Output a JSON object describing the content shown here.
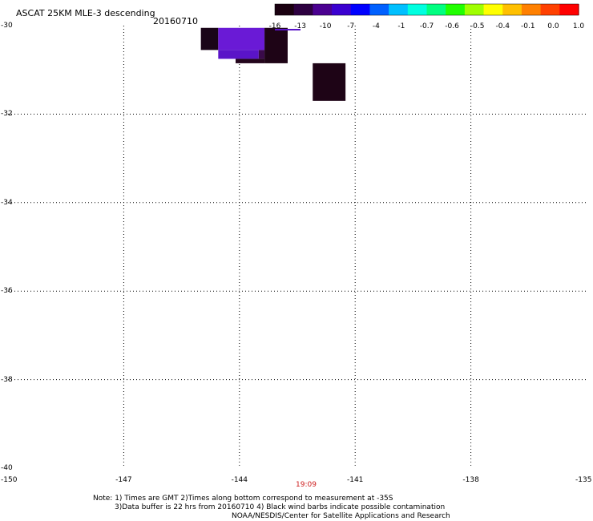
{
  "header": {
    "title": "ASCAT 25KM MLE-3 descending",
    "date": "20160710"
  },
  "colorbar": {
    "labels": [
      "-16",
      "-13",
      "-10",
      "-7",
      "-4",
      "-1",
      "-0.7",
      "-0.6",
      "-0.5",
      "-0.4",
      "-0.1",
      "0.0",
      "1.0"
    ],
    "colors": [
      "#1a0010",
      "#2d0040",
      "#4a0090",
      "#3a00d0",
      "#0000ff",
      "#0060ff",
      "#00c0ff",
      "#00ffe0",
      "#00ff80",
      "#20ff00",
      "#a0ff00",
      "#ffff00",
      "#ffc000",
      "#ff8000",
      "#ff4000",
      "#ff0000"
    ]
  },
  "chart_data": {
    "type": "heatmap",
    "title": "ASCAT 25KM MLE-3 descending",
    "xlim": [
      -150,
      -135
    ],
    "ylim": [
      -40,
      -30
    ],
    "x_ticks": [
      "-150",
      "-147",
      "-144",
      "-141",
      "-138",
      "-135"
    ],
    "y_ticks": [
      "-30",
      "-32",
      "-34",
      "-36",
      "-38",
      "-40"
    ],
    "grid": true,
    "cells": [
      {
        "lon0": -145.0,
        "lon1": -144.55,
        "lat0": -30.05,
        "lat1": -30.55,
        "color": "#1a0518"
      },
      {
        "lon0": -144.55,
        "lon1": -143.35,
        "lat0": -30.05,
        "lat1": -30.55,
        "color": "#6a1ad6"
      },
      {
        "lon0": -144.55,
        "lon1": -143.5,
        "lat0": -30.55,
        "lat1": -30.75,
        "color": "#5a14c8"
      },
      {
        "lon0": -143.5,
        "lon1": -143.35,
        "lat0": -30.55,
        "lat1": -30.75,
        "color": "#3a0a4a"
      },
      {
        "lon0": -144.1,
        "lon1": -143.35,
        "lat0": -30.75,
        "lat1": -30.85,
        "color": "#24051c"
      },
      {
        "lon0": -143.35,
        "lon1": -142.75,
        "lat0": -30.05,
        "lat1": -30.85,
        "color": "#1e0416"
      },
      {
        "lon0": -142.1,
        "lon1": -141.25,
        "lat0": -30.85,
        "lat1": -31.7,
        "color": "#1e0416"
      }
    ],
    "time_label": "19:09",
    "time_label_lon": -142.25
  },
  "notes": {
    "line1": "Note: 1) Times are GMT 2)Times along bottom correspond to measurement at -35S",
    "line2": "3)Data buffer is 22 hrs from 20160710 4) Black wind barbs indicate possible contamination",
    "line3": "NOAA/NESDIS/Center for Satellite Applications and Research"
  }
}
